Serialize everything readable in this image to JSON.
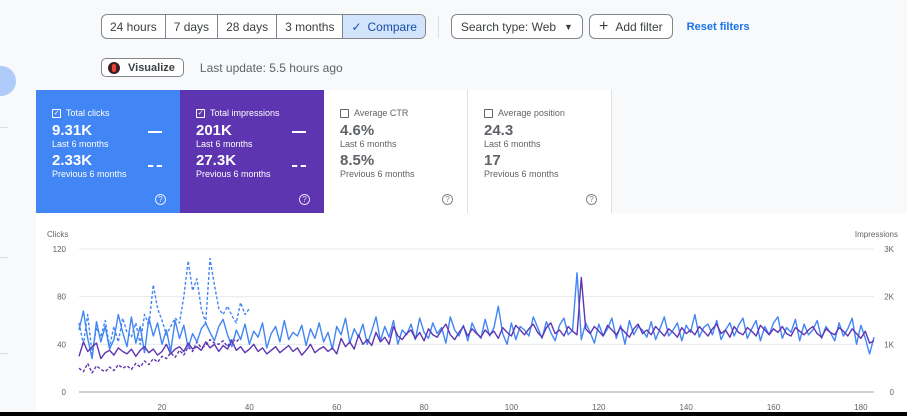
{
  "toolbar": {
    "ranges": [
      "24 hours",
      "7 days",
      "28 days",
      "3 months"
    ],
    "compare_label": "Compare",
    "search_type_label": "Search type: Web",
    "add_filter_label": "Add filter",
    "reset_filters_label": "Reset filters"
  },
  "visualize_label": "Visualize",
  "last_update": "Last update: 5.5 hours ago",
  "metrics": {
    "clicks": {
      "label": "Total clicks",
      "value": "9.31K",
      "period": "Last 6 months",
      "prev_value": "2.33K",
      "prev_period": "Previous 6 months",
      "checked": true
    },
    "impressions": {
      "label": "Total impressions",
      "value": "201K",
      "period": "Last 6 months",
      "prev_value": "27.3K",
      "prev_period": "Previous 6 months",
      "checked": true
    },
    "ctr": {
      "label": "Average CTR",
      "value": "4.6%",
      "period": "Last 6 months",
      "prev_value": "8.5%",
      "prev_period": "Previous 6 months",
      "checked": false
    },
    "position": {
      "label": "Average position",
      "value": "24.3",
      "period": "Last 6 months",
      "prev_value": "17",
      "prev_period": "Previous 6 months",
      "checked": false
    }
  },
  "colors": {
    "clicks": "#4285f4",
    "impressions": "#5e35b1",
    "active_range": "#d2e3fc"
  },
  "chart_data": {
    "type": "line",
    "left_axis_label": "Clicks",
    "right_axis_label": "Impressions",
    "left_ticks": [
      "0",
      "40",
      "80",
      "120"
    ],
    "right_ticks": [
      "0",
      "1K",
      "2K",
      "3K"
    ],
    "ylim_left": [
      0,
      120
    ],
    "ylim_right": [
      0,
      3000
    ],
    "x_ticks": [
      20,
      40,
      60,
      80,
      100,
      120,
      140,
      160,
      180
    ],
    "xlim": [
      1,
      183
    ],
    "grid": true,
    "series": [
      {
        "key": "clicks",
        "axis": "left",
        "style": "solid",
        "values": [
          52,
          68,
          45,
          28,
          59,
          42,
          55,
          36,
          44,
          65,
          50,
          38,
          63,
          41,
          55,
          33,
          62,
          47,
          58,
          40,
          52,
          34,
          60,
          45,
          56,
          37,
          49,
          42,
          53,
          58,
          50,
          43,
          55,
          61,
          48,
          38,
          52,
          44,
          57,
          40,
          51,
          46,
          58,
          37,
          49,
          55,
          42,
          60,
          44,
          50,
          47,
          56,
          39,
          53,
          45,
          58,
          42,
          50,
          36,
          55,
          48,
          62,
          41,
          53,
          46,
          57,
          40,
          51,
          63,
          43,
          55,
          46,
          60,
          40,
          52,
          48,
          57,
          44,
          62,
          50,
          45,
          58,
          49,
          54,
          41,
          63,
          52,
          47,
          56,
          43,
          58,
          50,
          45,
          61,
          47,
          54,
          72,
          49,
          40,
          58,
          44,
          55,
          52,
          47,
          63,
          54,
          45,
          59,
          50,
          43,
          56,
          62,
          48,
          52,
          100,
          44,
          58,
          50,
          41,
          57,
          47,
          53,
          62,
          45,
          56,
          40,
          60,
          48,
          55,
          52,
          46,
          59,
          44,
          53,
          63,
          47,
          52,
          58,
          43,
          56,
          50,
          65,
          46,
          54,
          57,
          48,
          60,
          44,
          52,
          58,
          47,
          56,
          62,
          45,
          53,
          60,
          43,
          55,
          48,
          58,
          63,
          45,
          54,
          50,
          61,
          43,
          57,
          48,
          52,
          60,
          45,
          55,
          50,
          43,
          58,
          47,
          53,
          62,
          40,
          56,
          45,
          32,
          46
        ]
      },
      {
        "key": "impressions",
        "axis": "left",
        "style": "solid",
        "values": [
          30,
          42,
          34,
          38,
          41,
          28,
          33,
          35,
          31,
          37,
          34,
          32,
          36,
          30,
          35,
          38,
          33,
          36,
          31,
          34,
          40,
          32,
          36,
          38,
          34,
          41,
          36,
          38,
          35,
          42,
          37,
          40,
          34,
          39,
          36,
          43,
          35,
          38,
          33,
          36,
          40,
          34,
          37,
          32,
          35,
          38,
          33,
          36,
          39,
          34,
          37,
          31,
          35,
          40,
          33,
          36,
          38,
          34,
          37,
          32,
          45,
          38,
          42,
          36,
          48,
          40,
          44,
          39,
          50,
          42,
          46,
          40,
          55,
          47,
          44,
          49,
          52,
          45,
          50,
          43,
          53,
          48,
          46,
          52,
          57,
          48,
          44,
          50,
          55,
          47,
          53,
          49,
          46,
          52,
          48,
          51,
          45,
          54,
          50,
          47,
          56,
          52,
          48,
          53,
          57,
          50,
          46,
          54,
          58,
          49,
          52,
          47,
          55,
          51,
          48,
          96,
          53,
          49,
          55,
          51,
          47,
          56,
          52,
          48,
          54,
          50,
          46,
          53,
          57,
          49,
          52,
          48,
          55,
          51,
          47,
          53,
          50,
          46,
          54,
          49,
          52,
          48,
          55,
          51,
          47,
          53,
          57,
          49,
          52,
          46,
          55,
          50,
          48,
          54,
          51,
          47,
          56,
          52,
          48,
          53,
          50,
          55,
          49,
          47,
          54,
          51,
          48,
          52,
          55,
          49,
          46,
          53,
          50,
          48,
          54,
          51,
          47,
          53,
          49,
          45,
          51,
          41,
          43
        ]
      },
      {
        "key": "clicks_prev",
        "axis": "left",
        "style": "dashed",
        "values": [
          58,
          40,
          65,
          32,
          54,
          46,
          60,
          38,
          55,
          42,
          62,
          50,
          46,
          58,
          40,
          65,
          56,
          90,
          70,
          60,
          48,
          55,
          62,
          58,
          80,
          110,
          85,
          95,
          70,
          58,
          112,
          90,
          70,
          65,
          72,
          64,
          58,
          75,
          65,
          70
        ]
      },
      {
        "key": "impressions_prev",
        "axis": "left",
        "style": "dashed",
        "values": [
          20,
          17,
          24,
          16,
          22,
          19,
          17,
          21,
          18,
          23,
          20,
          22,
          19,
          24,
          21,
          26,
          23,
          28,
          25,
          30,
          28,
          33,
          29,
          35,
          31,
          38,
          34,
          42,
          37,
          39,
          44,
          41,
          40,
          43,
          38,
          45,
          42,
          46
        ]
      }
    ]
  }
}
